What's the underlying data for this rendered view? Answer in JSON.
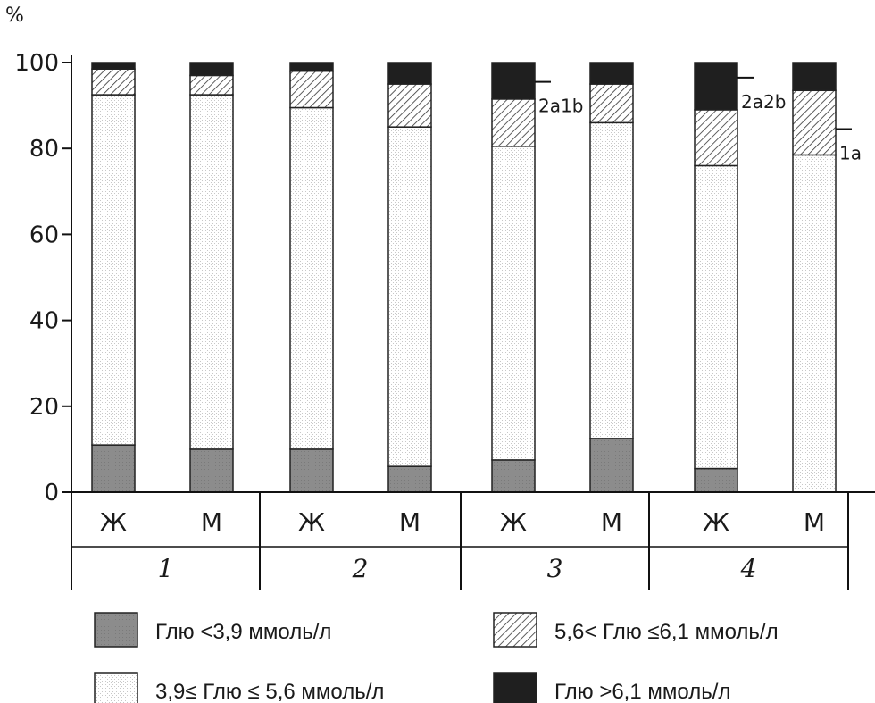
{
  "chart_data": {
    "type": "bar",
    "stacked": true,
    "ylabel": "%",
    "ylim": [
      0,
      100
    ],
    "yticks": [
      "0",
      "20",
      "40",
      "60",
      "80",
      "100"
    ],
    "groups": [
      "1",
      "2",
      "3",
      "4"
    ],
    "categories": [
      "Ж",
      "М",
      "Ж",
      "М",
      "Ж",
      "М",
      "Ж",
      "М"
    ],
    "category_group": [
      0,
      0,
      1,
      1,
      2,
      2,
      3,
      3
    ],
    "series": [
      {
        "name": "Глю <3,9 ммоль/л",
        "color": "#8a8a8a",
        "pattern": "solid-gray",
        "values": [
          11,
          10,
          10,
          6,
          7.5,
          12.5,
          5.5,
          0
        ]
      },
      {
        "name": "3,9≤ Глю ≤ 5,6 ммоль/л",
        "color": "#ffffff",
        "pattern": "dotted-white",
        "values": [
          81.5,
          82.5,
          79.5,
          79,
          73,
          73.5,
          70.5,
          78.5
        ]
      },
      {
        "name": "5,6< Глю ≤6,1 ммоль/л",
        "color": "#ffffff",
        "pattern": "hatched",
        "values": [
          6,
          4.5,
          8.5,
          10,
          11,
          9,
          13,
          15
        ]
      },
      {
        "name": "Глю >6,1 ммоль/л",
        "color": "#1f1f1f",
        "pattern": "solid-black",
        "values": [
          1.5,
          3,
          2,
          5,
          8.5,
          5,
          11,
          6.5
        ]
      }
    ],
    "annotations": [
      {
        "text": "2a1b",
        "bar": 4,
        "y": 95.5
      },
      {
        "text": "2a2b",
        "bar": 6,
        "y": 96.5
      },
      {
        "text": "1a",
        "bar": 7,
        "y": 84.5
      }
    ],
    "legend": {
      "placement": "bottom",
      "order": [
        0,
        2,
        1,
        3
      ]
    }
  }
}
